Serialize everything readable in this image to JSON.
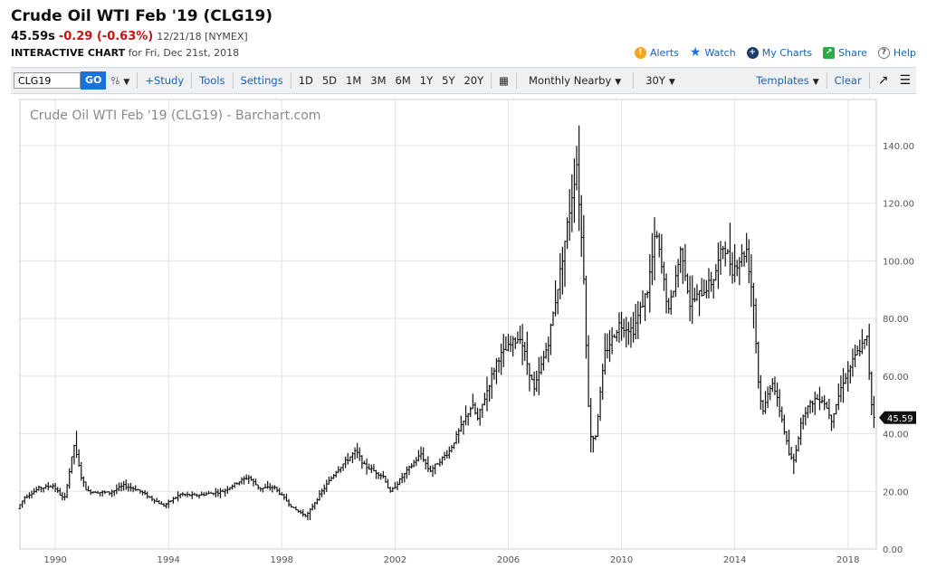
{
  "header": {
    "title": "Crude Oil WTI Feb '19 (CLG19)",
    "last": "45.59s",
    "change": "-0.29 (-0.63%)",
    "meta": "12/21/18 [NYMEX]",
    "interactive_label": "INTERACTIVE CHART",
    "date_label": "for Fri, Dec 21st, 2018"
  },
  "actions": [
    {
      "label": "Alerts",
      "icon": "alert-icon",
      "color": "#f5a623"
    },
    {
      "label": "Watch",
      "icon": "star-icon",
      "color": "#1a73d9"
    },
    {
      "label": "My Charts",
      "icon": "plus-circle-icon",
      "color": "#1a3d6b"
    },
    {
      "label": "Share",
      "icon": "share-icon",
      "color": "#2eaa4a"
    },
    {
      "label": "Help",
      "icon": "help-icon",
      "color": "#666666"
    }
  ],
  "toolbar": {
    "symbol_value": "CLG19",
    "go_label": "GO",
    "study_label": "+Study",
    "tools_label": "Tools",
    "settings_label": "Settings",
    "periods": [
      "1D",
      "5D",
      "1M",
      "3M",
      "6M",
      "1Y",
      "5Y",
      "20Y"
    ],
    "aggregation": "Monthly Nearby",
    "range": "30Y",
    "templates_label": "Templates",
    "clear_label": "Clear"
  },
  "chart_data": {
    "type": "ohlc",
    "title": "Crude Oil WTI Feb '19 (CLG19) - Barchart.com",
    "x_ticks": [
      "1990",
      "1994",
      "1998",
      "2002",
      "2006",
      "2010",
      "2014",
      "2018"
    ],
    "y_ticks": [
      "0.00",
      "20.00",
      "40.00",
      "60.00",
      "80.00",
      "100.00",
      "120.00",
      "140.00"
    ],
    "xlim": [
      1988.75,
      2019.0
    ],
    "ylim": [
      0,
      156
    ],
    "last_price_label": "45.59",
    "last_price": 45.59,
    "grid": true,
    "monthly_anchors": [
      [
        1988.75,
        14
      ],
      [
        1989.0,
        18
      ],
      [
        1989.5,
        21
      ],
      [
        1990.0,
        22
      ],
      [
        1990.4,
        17
      ],
      [
        1990.75,
        36
      ],
      [
        1991.0,
        25
      ],
      [
        1991.2,
        20
      ],
      [
        1992.0,
        19.5
      ],
      [
        1992.5,
        22
      ],
      [
        1993.0,
        20.5
      ],
      [
        1993.9,
        15
      ],
      [
        1994.5,
        19
      ],
      [
        1995.0,
        18.5
      ],
      [
        1996.0,
        20
      ],
      [
        1996.5,
        23
      ],
      [
        1996.9,
        25
      ],
      [
        1997.3,
        21
      ],
      [
        1997.8,
        21.5
      ],
      [
        1998.5,
        14
      ],
      [
        1998.95,
        11.5
      ],
      [
        1999.5,
        20
      ],
      [
        2000.0,
        27
      ],
      [
        2000.7,
        34
      ],
      [
        2001.0,
        29
      ],
      [
        2001.7,
        25
      ],
      [
        2001.9,
        19.5
      ],
      [
        2002.5,
        27
      ],
      [
        2003.0,
        33
      ],
      [
        2003.3,
        27
      ],
      [
        2004.0,
        34
      ],
      [
        2004.8,
        50
      ],
      [
        2005.0,
        45
      ],
      [
        2005.7,
        66
      ],
      [
        2006.5,
        74
      ],
      [
        2007.0,
        55
      ],
      [
        2007.5,
        72
      ],
      [
        2007.9,
        95
      ],
      [
        2008.5,
        134
      ],
      [
        2008.75,
        95
      ],
      [
        2008.95,
        40
      ],
      [
        2009.15,
        38
      ],
      [
        2009.5,
        68
      ],
      [
        2010.0,
        78
      ],
      [
        2010.5,
        76
      ],
      [
        2011.0,
        90
      ],
      [
        2011.3,
        110
      ],
      [
        2011.75,
        82
      ],
      [
        2012.2,
        105
      ],
      [
        2012.5,
        85
      ],
      [
        2012.9,
        89
      ],
      [
        2013.3,
        93
      ],
      [
        2013.7,
        106
      ],
      [
        2014.0,
        97
      ],
      [
        2014.5,
        104
      ],
      [
        2014.75,
        85
      ],
      [
        2014.95,
        53
      ],
      [
        2015.1,
        48
      ],
      [
        2015.4,
        59
      ],
      [
        2015.75,
        45
      ],
      [
        2016.0,
        33
      ],
      [
        2016.15,
        30
      ],
      [
        2016.5,
        47
      ],
      [
        2016.9,
        52
      ],
      [
        2017.2,
        52
      ],
      [
        2017.5,
        45
      ],
      [
        2017.9,
        58
      ],
      [
        2018.4,
        68
      ],
      [
        2018.75,
        73
      ],
      [
        2018.9,
        52
      ],
      [
        2018.97,
        46
      ]
    ]
  }
}
